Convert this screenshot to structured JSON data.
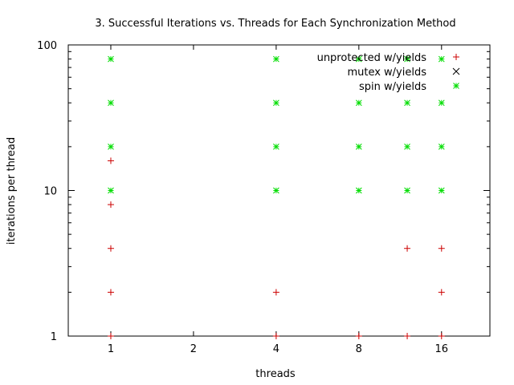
{
  "chart_data": {
    "type": "scatter",
    "title": "3. Successful Iterations vs. Threads for Each Synchronization Method",
    "xlabel": "threads",
    "ylabel": "iterations per thread",
    "x_scale": "log2",
    "y_scale": "log10",
    "xlim": [
      0.7,
      24
    ],
    "ylim": [
      1,
      100
    ],
    "x_ticks": [
      1,
      2,
      4,
      8,
      16
    ],
    "y_ticks": [
      1,
      10,
      100
    ],
    "grid": false,
    "legend_position": "top-right",
    "series": [
      {
        "name": "unprotected w/yields",
        "marker": "+",
        "color": "#cc0000",
        "points": [
          [
            1,
            1
          ],
          [
            1,
            2
          ],
          [
            1,
            4
          ],
          [
            1,
            8
          ],
          [
            1,
            16
          ],
          [
            4,
            1
          ],
          [
            4,
            2
          ],
          [
            8,
            1
          ],
          [
            12,
            1
          ],
          [
            12,
            4
          ],
          [
            16,
            1
          ],
          [
            16,
            2
          ],
          [
            16,
            4
          ]
        ]
      },
      {
        "name": "mutex w/yields",
        "marker": "x",
        "color": "#000000",
        "points": []
      },
      {
        "name": "spin w/yields",
        "marker": "*",
        "color": "#00dd00",
        "points": [
          [
            1,
            10
          ],
          [
            1,
            20
          ],
          [
            1,
            40
          ],
          [
            1,
            80
          ],
          [
            4,
            10
          ],
          [
            4,
            20
          ],
          [
            4,
            40
          ],
          [
            4,
            80
          ],
          [
            8,
            10
          ],
          [
            8,
            20
          ],
          [
            8,
            40
          ],
          [
            8,
            80
          ],
          [
            12,
            10
          ],
          [
            12,
            20
          ],
          [
            12,
            40
          ],
          [
            12,
            80
          ],
          [
            16,
            10
          ],
          [
            16,
            20
          ],
          [
            16,
            40
          ],
          [
            16,
            80
          ]
        ]
      }
    ]
  }
}
